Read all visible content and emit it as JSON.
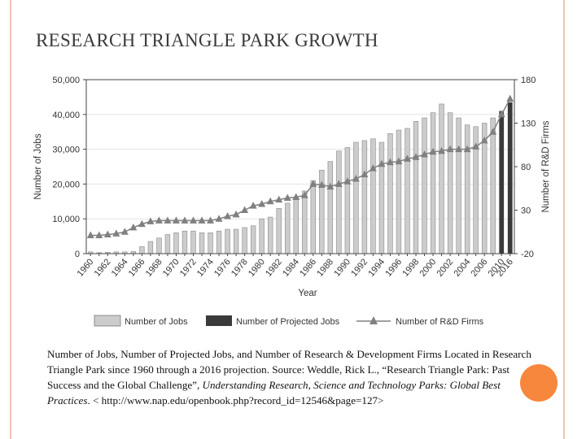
{
  "slide": {
    "title": "RESEARCH TRIANGLE PARK GROWTH",
    "caption": {
      "part1": "Number of Jobs, Number of Projected Jobs, and Number of Research & Development Firms Located in Research Triangle Park since 1960 through a 2016 projection. Source: Weddle, Rick L., “Research Triangle Park: Past Success and the Global Challenge”, ",
      "italic": "Understanding Research, Science and Technology Parks: Global Best Practices",
      "part2": ". < http://www.nap.edu/openbook.php?record_id=12546&page=127>"
    },
    "colors": {
      "accent_circle": "#f7873d",
      "deco_line": "#f2c4b8"
    }
  },
  "chart_data": {
    "type": "bar",
    "xlabel": "Year",
    "ylabel": "Number of Jobs",
    "y2label": "Number of R&D Firms",
    "ylim": [
      0,
      50000
    ],
    "y2lim": [
      -20,
      180
    ],
    "yticks": [
      "0",
      "10,000",
      "20,000",
      "30,000",
      "40,000",
      "50,000"
    ],
    "y2ticks": [
      "-20",
      "30",
      "80",
      "130",
      "180"
    ],
    "categories": [
      "1960",
      "1961",
      "1962",
      "1963",
      "1964",
      "1965",
      "1966",
      "1967",
      "1968",
      "1969",
      "1970",
      "1971",
      "1972",
      "1973",
      "1974",
      "1975",
      "1976",
      "1977",
      "1978",
      "1979",
      "1980",
      "1981",
      "1982",
      "1983",
      "1984",
      "1985",
      "1986",
      "1987",
      "1988",
      "1989",
      "1990",
      "1991",
      "1992",
      "1993",
      "1994",
      "1995",
      "1996",
      "1997",
      "1998",
      "1999",
      "2000",
      "2001",
      "2002",
      "2003",
      "2004",
      "2005",
      "2006",
      "2007",
      "2010",
      "2016"
    ],
    "xticklabels": [
      "1960",
      "",
      "1962",
      "",
      "1964",
      "",
      "1966",
      "",
      "1968",
      "",
      "1970",
      "",
      "1972",
      "",
      "1974",
      "",
      "1976",
      "",
      "1978",
      "",
      "1980",
      "",
      "1982",
      "",
      "1984",
      "",
      "1986",
      "",
      "1988",
      "",
      "1990",
      "",
      "1992",
      "",
      "1994",
      "",
      "1996",
      "",
      "1998",
      "",
      "2000",
      "",
      "2002",
      "",
      "2004",
      "",
      "2006",
      "",
      "2010",
      "2016"
    ],
    "series": [
      {
        "name": "Number of Jobs",
        "color": "#cccccc",
        "values": [
          500,
          300,
          400,
          500,
          500,
          600,
          2000,
          3500,
          4500,
          5500,
          6000,
          6500,
          6500,
          6000,
          6000,
          6500,
          7000,
          7000,
          7500,
          8000,
          10000,
          10500,
          13000,
          14500,
          16000,
          18000,
          21000,
          24000,
          26500,
          29500,
          30500,
          32000,
          32500,
          33000,
          32000,
          34500,
          35500,
          36000,
          38000,
          39000,
          40500,
          43000,
          40500,
          39000,
          37000,
          36500,
          37500,
          39000,
          0,
          0
        ]
      },
      {
        "name": "Number of Projected Jobs",
        "color": "#3a3a3a",
        "values": [
          0,
          0,
          0,
          0,
          0,
          0,
          0,
          0,
          0,
          0,
          0,
          0,
          0,
          0,
          0,
          0,
          0,
          0,
          0,
          0,
          0,
          0,
          0,
          0,
          0,
          0,
          0,
          0,
          0,
          0,
          0,
          0,
          0,
          0,
          0,
          0,
          0,
          0,
          0,
          0,
          0,
          0,
          0,
          0,
          0,
          0,
          0,
          0,
          41000,
          43500
        ]
      },
      {
        "name": "Number of R&D Firms",
        "color": "#808080",
        "values": [
          1,
          1,
          2,
          3,
          5,
          10,
          14,
          17,
          18,
          18,
          18,
          18,
          18,
          18,
          18,
          20,
          23,
          25,
          30,
          35,
          37,
          40,
          42,
          44,
          45,
          47,
          60,
          59,
          57,
          60,
          63,
          66,
          71,
          78,
          83,
          85,
          86,
          89,
          91,
          94,
          97,
          98,
          100,
          100,
          100,
          103,
          110,
          120,
          140,
          158
        ]
      }
    ]
  }
}
